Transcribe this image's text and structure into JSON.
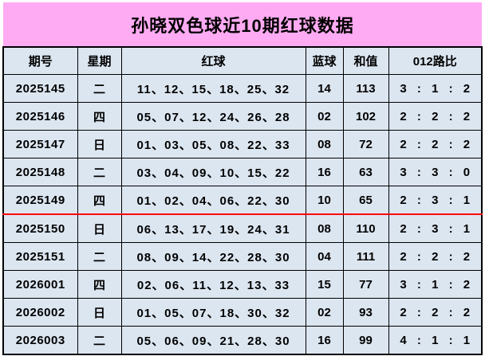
{
  "title": "孙晓双色球近10期红球数据",
  "colors": {
    "title_bg": "#FFABF3",
    "cell_bg": "#DCE6F1",
    "grid": "#000000",
    "red_ball_text": "#FF0000",
    "blue_ball_text": "#0000FF",
    "divider_line": "#FF0000"
  },
  "table": {
    "columns": [
      {
        "key": "period",
        "label": "期号"
      },
      {
        "key": "weekday",
        "label": "星期"
      },
      {
        "key": "red_balls",
        "label": "红球"
      },
      {
        "key": "blue_ball",
        "label": "蓝球"
      },
      {
        "key": "sum",
        "label": "和值"
      },
      {
        "key": "ratio",
        "label": "012路比"
      }
    ],
    "rows": [
      {
        "period": "2025145",
        "weekday": "二",
        "red_balls": "11、12、15、18、25、32",
        "blue_ball": "14",
        "sum": "113",
        "ratio": "3 : 1 : 2"
      },
      {
        "period": "2025146",
        "weekday": "四",
        "red_balls": "05、07、12、24、26、28",
        "blue_ball": "02",
        "sum": "102",
        "ratio": "2 : 2 : 2"
      },
      {
        "period": "2025147",
        "weekday": "日",
        "red_balls": "01、03、05、08、22、33",
        "blue_ball": "08",
        "sum": "72",
        "ratio": "2 : 2 : 2"
      },
      {
        "period": "2025148",
        "weekday": "二",
        "red_balls": "03、04、09、10、15、22",
        "blue_ball": "16",
        "sum": "63",
        "ratio": "3 : 3 : 0"
      },
      {
        "period": "2025149",
        "weekday": "四",
        "red_balls": "01、02、04、06、22、30",
        "blue_ball": "10",
        "sum": "65",
        "ratio": "2 : 3 : 1"
      },
      {
        "period": "2025150",
        "weekday": "日",
        "red_balls": "06、13、17、19、24、31",
        "blue_ball": "08",
        "sum": "110",
        "ratio": "2 : 3 : 1",
        "red_divider_above": true
      },
      {
        "period": "2025151",
        "weekday": "二",
        "red_balls": "08、09、14、22、28、30",
        "blue_ball": "04",
        "sum": "111",
        "ratio": "2 : 2 : 2"
      },
      {
        "period": "2026001",
        "weekday": "四",
        "red_balls": "02、06、11、12、13、33",
        "blue_ball": "15",
        "sum": "77",
        "ratio": "3 : 1 : 2"
      },
      {
        "period": "2026002",
        "weekday": "日",
        "red_balls": "01、05、07、18、30、32",
        "blue_ball": "02",
        "sum": "93",
        "ratio": "2 : 2 : 2"
      },
      {
        "period": "2026003",
        "weekday": "二",
        "red_balls": "05、06、09、21、28、30",
        "blue_ball": "16",
        "sum": "99",
        "ratio": "4 : 1 : 1"
      }
    ]
  }
}
